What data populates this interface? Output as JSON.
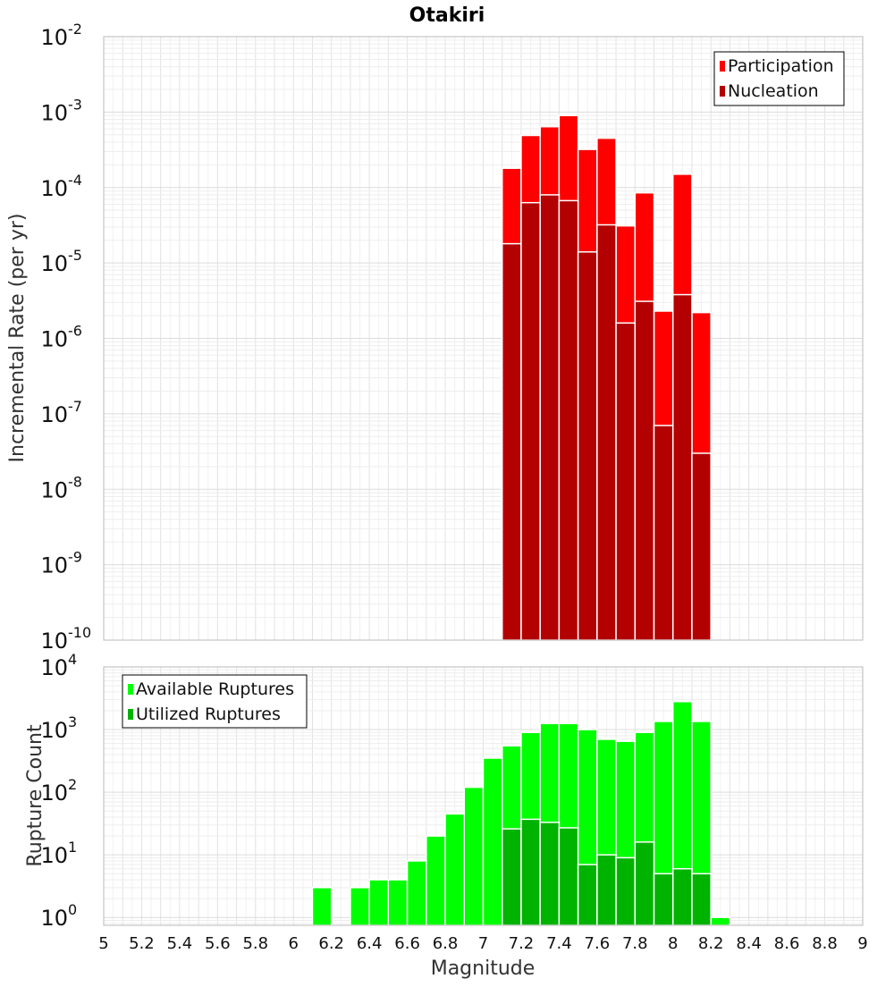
{
  "chart_data": [
    {
      "type": "bar",
      "title": "Otakiri",
      "xlabel": "",
      "ylabel": "Incremental Rate (per yr)",
      "y_scale": "log",
      "ylim": [
        1e-10,
        0.01
      ],
      "xlim": [
        5,
        9
      ],
      "grid": true,
      "legend_position": "top-right",
      "y_tick_labels": [
        {
          "base": "10",
          "exp": "-10"
        },
        {
          "base": "10",
          "exp": "-9"
        },
        {
          "base": "10",
          "exp": "-8"
        },
        {
          "base": "10",
          "exp": "-7"
        },
        {
          "base": "10",
          "exp": "-6"
        },
        {
          "base": "10",
          "exp": "-5"
        },
        {
          "base": "10",
          "exp": "-4"
        },
        {
          "base": "10",
          "exp": "-3"
        },
        {
          "base": "10",
          "exp": "-2"
        }
      ],
      "x": [
        7.15,
        7.25,
        7.35,
        7.45,
        7.55,
        7.65,
        7.75,
        7.85,
        7.95,
        8.05,
        8.15
      ],
      "series": [
        {
          "name": "Participation",
          "color": "#ff0000",
          "values": [
            0.00018,
            0.00049,
            0.00064,
            0.0009,
            0.00032,
            0.00045,
            3.1e-05,
            8.5e-05,
            2.3e-06,
            0.00015,
            2.2e-06
          ]
        },
        {
          "name": "Nucleation",
          "color": "#b30000",
          "values": [
            1.8e-05,
            6.3e-05,
            8e-05,
            6.7e-05,
            1.4e-05,
            3.2e-05,
            1.6e-06,
            3.1e-06,
            7e-08,
            3.8e-06,
            3e-08
          ]
        }
      ]
    },
    {
      "type": "bar",
      "title": "",
      "xlabel": "Magnitude",
      "ylabel": "Rupture Count",
      "y_scale": "log",
      "ylim": [
        0.75,
        10000
      ],
      "xlim": [
        5,
        9
      ],
      "grid": true,
      "legend_position": "top-left",
      "x_tick_labels": [
        "5",
        "5.2",
        "5.4",
        "5.6",
        "5.8",
        "6",
        "6.2",
        "6.4",
        "6.6",
        "6.8",
        "7",
        "7.2",
        "7.4",
        "7.6",
        "7.8",
        "8",
        "8.2",
        "8.4",
        "8.6",
        "8.8",
        "9"
      ],
      "y_tick_labels": [
        {
          "base": "10",
          "exp": "0"
        },
        {
          "base": "10",
          "exp": "1"
        },
        {
          "base": "10",
          "exp": "2"
        },
        {
          "base": "10",
          "exp": "3"
        },
        {
          "base": "10",
          "exp": "4"
        }
      ],
      "x": [
        6.15,
        6.35,
        6.45,
        6.55,
        6.65,
        6.75,
        6.85,
        6.95,
        7.05,
        7.15,
        7.25,
        7.35,
        7.45,
        7.55,
        7.65,
        7.75,
        7.85,
        7.95,
        8.05,
        8.15,
        8.25
      ],
      "series": [
        {
          "name": "Available Ruptures",
          "color": "#00ff00",
          "values": [
            3,
            3,
            4,
            4,
            8,
            20,
            45,
            120,
            350,
            550,
            900,
            1250,
            1250,
            1000,
            700,
            650,
            900,
            1350,
            2800,
            1350,
            1
          ]
        },
        {
          "name": "Utilized Ruptures",
          "color": "#00b300",
          "values": [
            null,
            null,
            null,
            null,
            null,
            null,
            null,
            null,
            null,
            26,
            37,
            33,
            27,
            7,
            10,
            9,
            16,
            5,
            6,
            5,
            null
          ]
        }
      ]
    }
  ]
}
